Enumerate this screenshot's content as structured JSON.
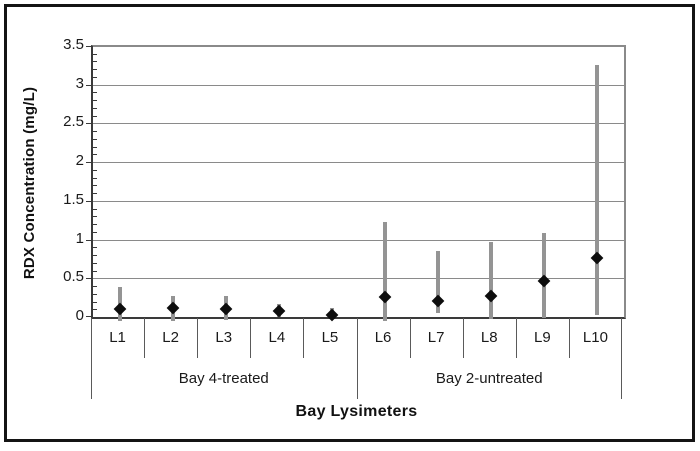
{
  "figure": {
    "background": "#ffffff",
    "outer_border_color": "#141414"
  },
  "chart_data": {
    "type": "scatter",
    "subtype": "point-with-min-max-error-bars",
    "title": "",
    "xlabel": "Bay Lysimeters",
    "ylabel": "RDX Concentration (mg/L)",
    "ylim": [
      0,
      3.5
    ],
    "y_major_step": 0.5,
    "y_minor_step": 0.1,
    "y_tick_labels": [
      "0",
      "0.5",
      "1",
      "1.5",
      "2",
      "2.5",
      "3",
      "3.5"
    ],
    "grid": "horizontal-major-on",
    "legend": "none",
    "categories": [
      "L1",
      "L2",
      "L3",
      "L4",
      "L5",
      "L6",
      "L7",
      "L8",
      "L9",
      "L10"
    ],
    "series": [
      {
        "name": "RDX concentration",
        "marker": "diamond",
        "values": [
          0.1,
          0.11,
          0.1,
          0.08,
          0.03,
          0.26,
          0.21,
          0.27,
          0.47,
          0.76
        ],
        "error_high": [
          0.39,
          0.27,
          0.27,
          0.17,
          0.12,
          1.23,
          0.85,
          0.97,
          1.08,
          3.26
        ],
        "error_low": [
          -0.05,
          -0.05,
          -0.04,
          0.0,
          -0.02,
          -0.05,
          0.05,
          -0.03,
          -0.01,
          0.02
        ]
      }
    ],
    "groups": [
      {
        "label": "Bay 4-treated",
        "start_index": 0,
        "end_index": 4
      },
      {
        "label": "Bay 2-untreated",
        "start_index": 5,
        "end_index": 9
      }
    ],
    "colors": {
      "marker": "#0d0d0d",
      "error_bar": "#949494",
      "gridline": "#8a8a8a",
      "axis": "#3a3a3a",
      "text": "#1a1a1a"
    }
  }
}
